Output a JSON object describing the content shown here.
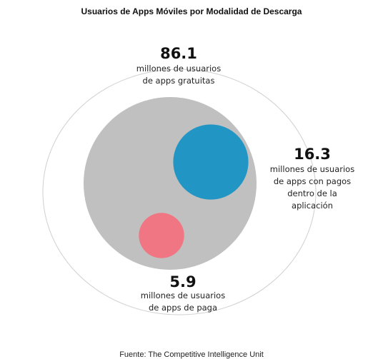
{
  "title": "Usuarios de Apps Móviles por Modalidad de Descarga",
  "source": "Fuente: The Competitive Intelligence Unit",
  "chart_data": {
    "type": "bubble",
    "unit": "millones de usuarios",
    "groups": [
      {
        "value": 86.1,
        "display": "86.1",
        "label_lines": [
          "millones de usuarios",
          "de apps gratuitas"
        ],
        "color": "#c0c0c0"
      },
      {
        "value": 16.3,
        "display": "16.3",
        "label_lines": [
          "millones de usuarios",
          "de apps con pagos",
          "dentro de la",
          "aplicación"
        ],
        "color": "#2196c4"
      },
      {
        "value": 5.9,
        "display": "5.9",
        "label_lines": [
          "millones de usuarios",
          "de apps de paga"
        ],
        "color": "#f07683"
      }
    ]
  }
}
